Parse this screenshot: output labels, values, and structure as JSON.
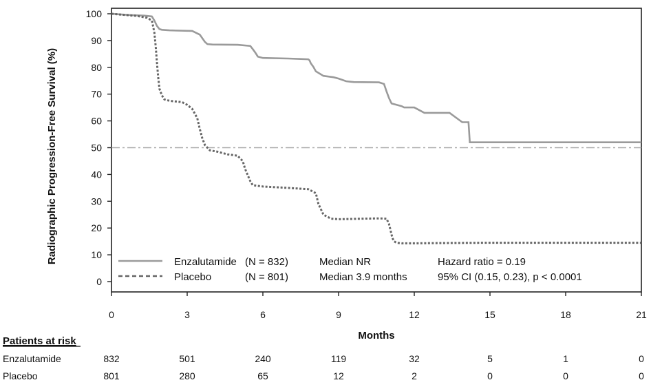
{
  "chart_data": {
    "type": "line",
    "title": "",
    "xlabel": "Months",
    "ylabel": "Radiographic Progression-Free Survival (%)",
    "xlim": [
      0,
      21
    ],
    "ylim": [
      0,
      100
    ],
    "x_ticks": [
      0,
      3,
      6,
      9,
      12,
      15,
      18,
      21
    ],
    "y_ticks": [
      0,
      10,
      20,
      30,
      40,
      50,
      60,
      70,
      80,
      90,
      100
    ],
    "grid": false,
    "reference_line": {
      "y": 50,
      "style": "dash-dot"
    },
    "series": [
      {
        "name": "Enzalutamide",
        "n_label": "(N = 832)",
        "median_label": "Median NR",
        "style": "solid",
        "color": "#9a9a9a",
        "x": [
          0,
          0.3,
          0.8,
          1.3,
          1.6,
          1.7,
          1.8,
          1.9,
          2.0,
          2.3,
          3.2,
          3.5,
          3.7,
          3.8,
          4.0,
          5.0,
          5.5,
          5.6,
          5.7,
          5.8,
          6.0,
          7.0,
          7.5,
          7.8,
          7.85,
          7.9,
          8.0,
          8.1,
          8.4,
          8.8,
          9.0,
          9.3,
          9.6,
          10.6,
          10.8,
          10.9,
          11.0,
          11.1,
          11.3,
          11.5,
          11.6,
          12.0,
          12.4,
          13.4,
          13.9,
          14.15,
          14.2,
          16,
          18,
          20,
          21
        ],
        "y": [
          100,
          99.8,
          99.5,
          99.3,
          99.0,
          97.5,
          95.5,
          94.3,
          94.0,
          93.8,
          93.6,
          92.2,
          89.5,
          88.7,
          88.5,
          88.4,
          88.0,
          86.8,
          85.5,
          84.0,
          83.5,
          83.3,
          83.1,
          83.0,
          82.6,
          81.5,
          80.2,
          78.5,
          76.8,
          76.3,
          75.8,
          74.8,
          74.5,
          74.4,
          73.8,
          71.0,
          68.5,
          66.5,
          66.0,
          65.5,
          65.0,
          65.0,
          63.0,
          63.0,
          59.5,
          59.5,
          52.0,
          52.0,
          52.0,
          52.0,
          52.0
        ]
      },
      {
        "name": "Placebo",
        "n_label": "(N = 801)",
        "median_label": "Median 3.9 months",
        "style": "dotted",
        "color": "#666666",
        "x": [
          0,
          0.5,
          1.0,
          1.4,
          1.6,
          1.7,
          1.75,
          1.8,
          1.85,
          1.9,
          2.0,
          2.1,
          2.3,
          2.5,
          2.8,
          3.0,
          3.2,
          3.4,
          3.5,
          3.6,
          3.7,
          3.8,
          3.9,
          4.2,
          4.6,
          5.0,
          5.2,
          5.3,
          5.5,
          5.6,
          6.0,
          7.0,
          7.8,
          8.1,
          8.2,
          8.4,
          8.7,
          9.0,
          10.0,
          10.6,
          10.9,
          11.0,
          11.05,
          11.1,
          11.15,
          11.2,
          11.3,
          11.5,
          12.0,
          13.0,
          15.0,
          18.0,
          21.0
        ],
        "y": [
          100,
          99.6,
          99.2,
          98.5,
          97.5,
          93.0,
          88.0,
          82.0,
          76.5,
          72.0,
          69.5,
          68.0,
          67.5,
          67.3,
          67.0,
          66.0,
          64.5,
          61.0,
          57.0,
          53.5,
          51.0,
          50.0,
          49.0,
          48.5,
          47.5,
          47.0,
          45.0,
          42.0,
          37.5,
          36.0,
          35.5,
          35.0,
          34.5,
          33.0,
          29.0,
          25.0,
          23.5,
          23.3,
          23.5,
          23.6,
          23.5,
          21.5,
          19.5,
          17.5,
          16.0,
          15.0,
          14.5,
          14.3,
          14.3,
          14.4,
          14.5,
          14.5,
          14.5
        ]
      }
    ],
    "legend": {
      "placement": "lower-left",
      "stats_line1": "Hazard ratio = 0.19",
      "stats_line2": "95% CI (0.15, 0.23), p < 0.0001"
    }
  },
  "risk_table": {
    "title": "Patients at risk",
    "rows": [
      {
        "label": "Enzalutamide",
        "values": [
          "832",
          "501",
          "240",
          "119",
          "32",
          "5",
          "1",
          "0"
        ]
      },
      {
        "label": "Placebo",
        "values": [
          "801",
          "280",
          "65",
          "12",
          "2",
          "0",
          "0",
          "0"
        ]
      }
    ]
  }
}
